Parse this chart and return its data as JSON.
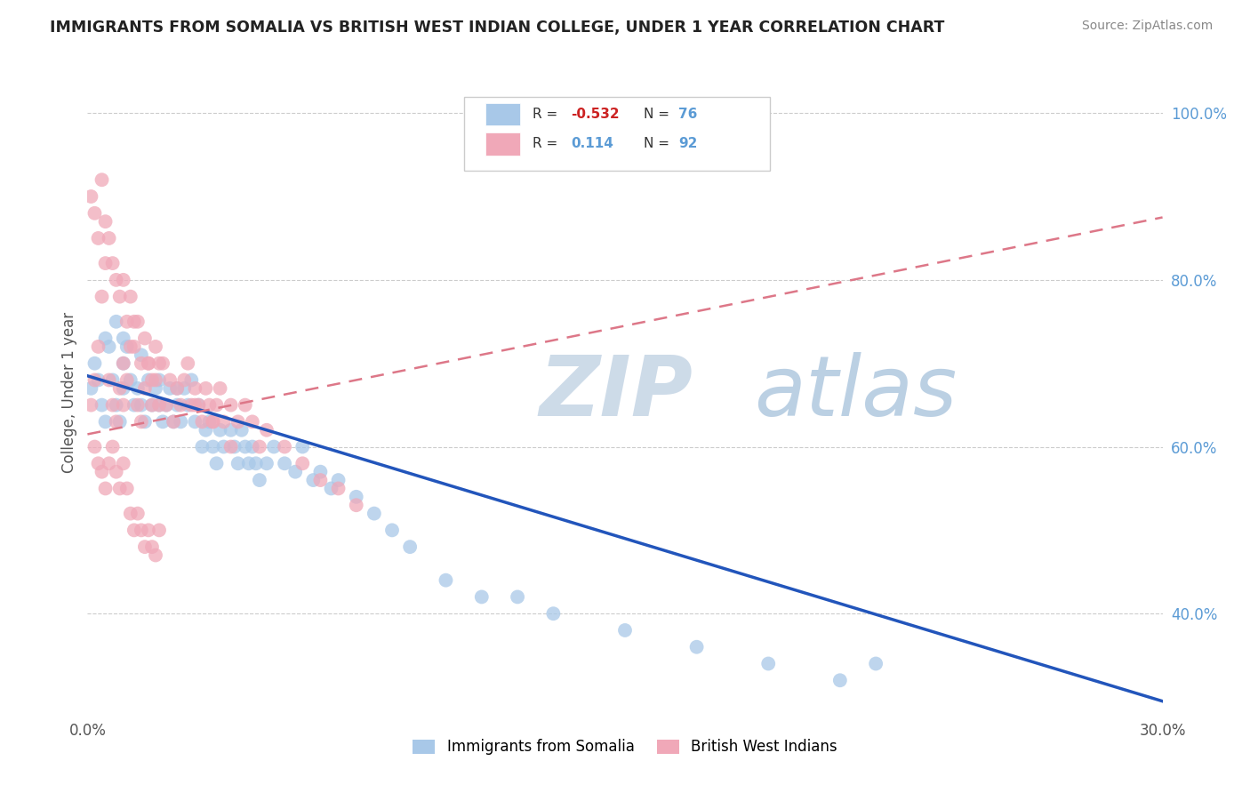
{
  "title": "IMMIGRANTS FROM SOMALIA VS BRITISH WEST INDIAN COLLEGE, UNDER 1 YEAR CORRELATION CHART",
  "source": "Source: ZipAtlas.com",
  "ylabel": "College, Under 1 year",
  "xlim": [
    0.0,
    0.3
  ],
  "ylim": [
    0.28,
    1.05
  ],
  "grid_color": "#cccccc",
  "background_color": "#ffffff",
  "somalia_color": "#a8c8e8",
  "bwi_color": "#f0a8b8",
  "somalia_line_color": "#2255bb",
  "bwi_line_color": "#dd7788",
  "watermark_zip_color": "#c8d8e8",
  "watermark_atlas_color": "#b8ccdd",
  "somalia_line_x0": 0.0,
  "somalia_line_y0": 0.685,
  "somalia_line_x1": 0.3,
  "somalia_line_y1": 0.295,
  "bwi_line_x0": 0.0,
  "bwi_line_y0": 0.615,
  "bwi_line_x1": 0.3,
  "bwi_line_y1": 0.875,
  "somalia_x": [
    0.001,
    0.002,
    0.003,
    0.004,
    0.005,
    0.006,
    0.007,
    0.008,
    0.009,
    0.01,
    0.01,
    0.011,
    0.012,
    0.013,
    0.014,
    0.015,
    0.016,
    0.017,
    0.018,
    0.019,
    0.02,
    0.021,
    0.022,
    0.023,
    0.024,
    0.025,
    0.026,
    0.027,
    0.028,
    0.029,
    0.03,
    0.031,
    0.032,
    0.033,
    0.034,
    0.035,
    0.036,
    0.037,
    0.038,
    0.04,
    0.041,
    0.042,
    0.043,
    0.044,
    0.045,
    0.046,
    0.047,
    0.048,
    0.05,
    0.052,
    0.055,
    0.058,
    0.06,
    0.063,
    0.065,
    0.068,
    0.07,
    0.075,
    0.08,
    0.085,
    0.09,
    0.1,
    0.11,
    0.12,
    0.13,
    0.15,
    0.17,
    0.19,
    0.21,
    0.22,
    0.005,
    0.008,
    0.01,
    0.015,
    0.02,
    0.025
  ],
  "somalia_y": [
    0.67,
    0.7,
    0.68,
    0.65,
    0.63,
    0.72,
    0.68,
    0.65,
    0.63,
    0.67,
    0.7,
    0.72,
    0.68,
    0.65,
    0.67,
    0.65,
    0.63,
    0.68,
    0.65,
    0.67,
    0.65,
    0.63,
    0.65,
    0.67,
    0.63,
    0.65,
    0.63,
    0.67,
    0.65,
    0.68,
    0.63,
    0.65,
    0.6,
    0.62,
    0.63,
    0.6,
    0.58,
    0.62,
    0.6,
    0.62,
    0.6,
    0.58,
    0.62,
    0.6,
    0.58,
    0.6,
    0.58,
    0.56,
    0.58,
    0.6,
    0.58,
    0.57,
    0.6,
    0.56,
    0.57,
    0.55,
    0.56,
    0.54,
    0.52,
    0.5,
    0.48,
    0.44,
    0.42,
    0.42,
    0.4,
    0.38,
    0.36,
    0.34,
    0.32,
    0.34,
    0.73,
    0.75,
    0.73,
    0.71,
    0.68,
    0.67
  ],
  "bwi_x": [
    0.001,
    0.002,
    0.003,
    0.004,
    0.005,
    0.006,
    0.007,
    0.008,
    0.009,
    0.01,
    0.01,
    0.011,
    0.012,
    0.013,
    0.014,
    0.015,
    0.016,
    0.017,
    0.018,
    0.019,
    0.02,
    0.021,
    0.022,
    0.023,
    0.024,
    0.025,
    0.026,
    0.027,
    0.028,
    0.029,
    0.03,
    0.031,
    0.032,
    0.033,
    0.034,
    0.035,
    0.036,
    0.037,
    0.038,
    0.04,
    0.042,
    0.044,
    0.046,
    0.048,
    0.05,
    0.055,
    0.06,
    0.065,
    0.07,
    0.075,
    0.001,
    0.002,
    0.003,
    0.004,
    0.005,
    0.006,
    0.007,
    0.008,
    0.009,
    0.01,
    0.011,
    0.012,
    0.013,
    0.014,
    0.015,
    0.016,
    0.017,
    0.018,
    0.019,
    0.02,
    0.002,
    0.003,
    0.004,
    0.005,
    0.006,
    0.007,
    0.008,
    0.009,
    0.01,
    0.011,
    0.012,
    0.013,
    0.014,
    0.015,
    0.016,
    0.017,
    0.018,
    0.019,
    0.02,
    0.03,
    0.035,
    0.04
  ],
  "bwi_y": [
    0.65,
    0.68,
    0.72,
    0.78,
    0.82,
    0.68,
    0.65,
    0.63,
    0.67,
    0.7,
    0.65,
    0.68,
    0.72,
    0.75,
    0.65,
    0.63,
    0.67,
    0.7,
    0.65,
    0.68,
    0.65,
    0.7,
    0.65,
    0.68,
    0.63,
    0.67,
    0.65,
    0.68,
    0.7,
    0.65,
    0.67,
    0.65,
    0.63,
    0.67,
    0.65,
    0.63,
    0.65,
    0.67,
    0.63,
    0.65,
    0.63,
    0.65,
    0.63,
    0.6,
    0.62,
    0.6,
    0.58,
    0.56,
    0.55,
    0.53,
    0.9,
    0.88,
    0.85,
    0.92,
    0.87,
    0.85,
    0.82,
    0.8,
    0.78,
    0.8,
    0.75,
    0.78,
    0.72,
    0.75,
    0.7,
    0.73,
    0.7,
    0.68,
    0.72,
    0.7,
    0.6,
    0.58,
    0.57,
    0.55,
    0.58,
    0.6,
    0.57,
    0.55,
    0.58,
    0.55,
    0.52,
    0.5,
    0.52,
    0.5,
    0.48,
    0.5,
    0.48,
    0.47,
    0.5,
    0.65,
    0.63,
    0.6
  ]
}
